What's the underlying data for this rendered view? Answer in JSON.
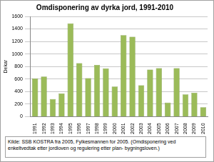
{
  "chart_data": {
    "type": "bar",
    "title": "Omdisponering av dyrka jord, 1991-2010",
    "y_label": "Dekar",
    "categories": [
      "1991",
      "1992",
      "1993",
      "1994",
      "1995",
      "1996",
      "1997",
      "1998",
      "1999",
      "2000",
      "2001",
      "2002",
      "2003",
      "2004",
      "2005",
      "2006",
      "2007",
      "2008",
      "2009",
      "2010"
    ],
    "values": [
      610,
      640,
      280,
      370,
      1490,
      855,
      615,
      825,
      770,
      480,
      1300,
      1275,
      500,
      750,
      775,
      225,
      775,
      355,
      380,
      150
    ],
    "color": "#9bbb59",
    "ylim": [
      0,
      1600
    ],
    "yticks": [
      0,
      200,
      400,
      600,
      800,
      1000,
      1200,
      1400,
      1600
    ],
    "grid": true,
    "source": "Kilde: SSB KOSTRA fra 2005, Fylkesmannen for 2005. (Omdisponering ved enkeltvedtak etter jordloven og regulering etter plan- bygningsloven.)"
  }
}
